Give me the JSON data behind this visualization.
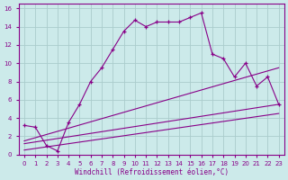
{
  "xlabel": "Windchill (Refroidissement éolien,°C)",
  "background_color": "#cceaea",
  "grid_color": "#aacccc",
  "line_color": "#880088",
  "xlim": [
    -0.5,
    23.5
  ],
  "ylim": [
    0,
    16.5
  ],
  "xticks": [
    0,
    1,
    2,
    3,
    4,
    5,
    6,
    7,
    8,
    9,
    10,
    11,
    12,
    13,
    14,
    15,
    16,
    17,
    18,
    19,
    20,
    21,
    22,
    23
  ],
  "yticks": [
    0,
    2,
    4,
    6,
    8,
    10,
    12,
    14,
    16
  ],
  "series1_x": [
    0,
    1,
    2,
    3,
    4,
    5,
    6,
    7,
    8,
    9,
    10,
    11,
    12,
    13,
    14,
    15,
    16,
    17,
    18,
    19,
    20,
    21,
    22,
    23
  ],
  "series1_y": [
    3.2,
    3.0,
    1.0,
    0.4,
    3.5,
    5.5,
    8.0,
    9.5,
    11.5,
    13.5,
    14.7,
    14.0,
    14.5,
    14.5,
    14.5,
    15.0,
    15.5,
    11.0,
    10.5,
    8.5,
    10.0,
    7.5,
    8.5,
    5.5
  ],
  "series2_x": [
    0,
    23
  ],
  "series2_y": [
    1.5,
    9.5
  ],
  "series3_x": [
    0,
    23
  ],
  "series3_y": [
    1.2,
    5.5
  ],
  "series4_x": [
    0,
    23
  ],
  "series4_y": [
    0.5,
    4.5
  ]
}
